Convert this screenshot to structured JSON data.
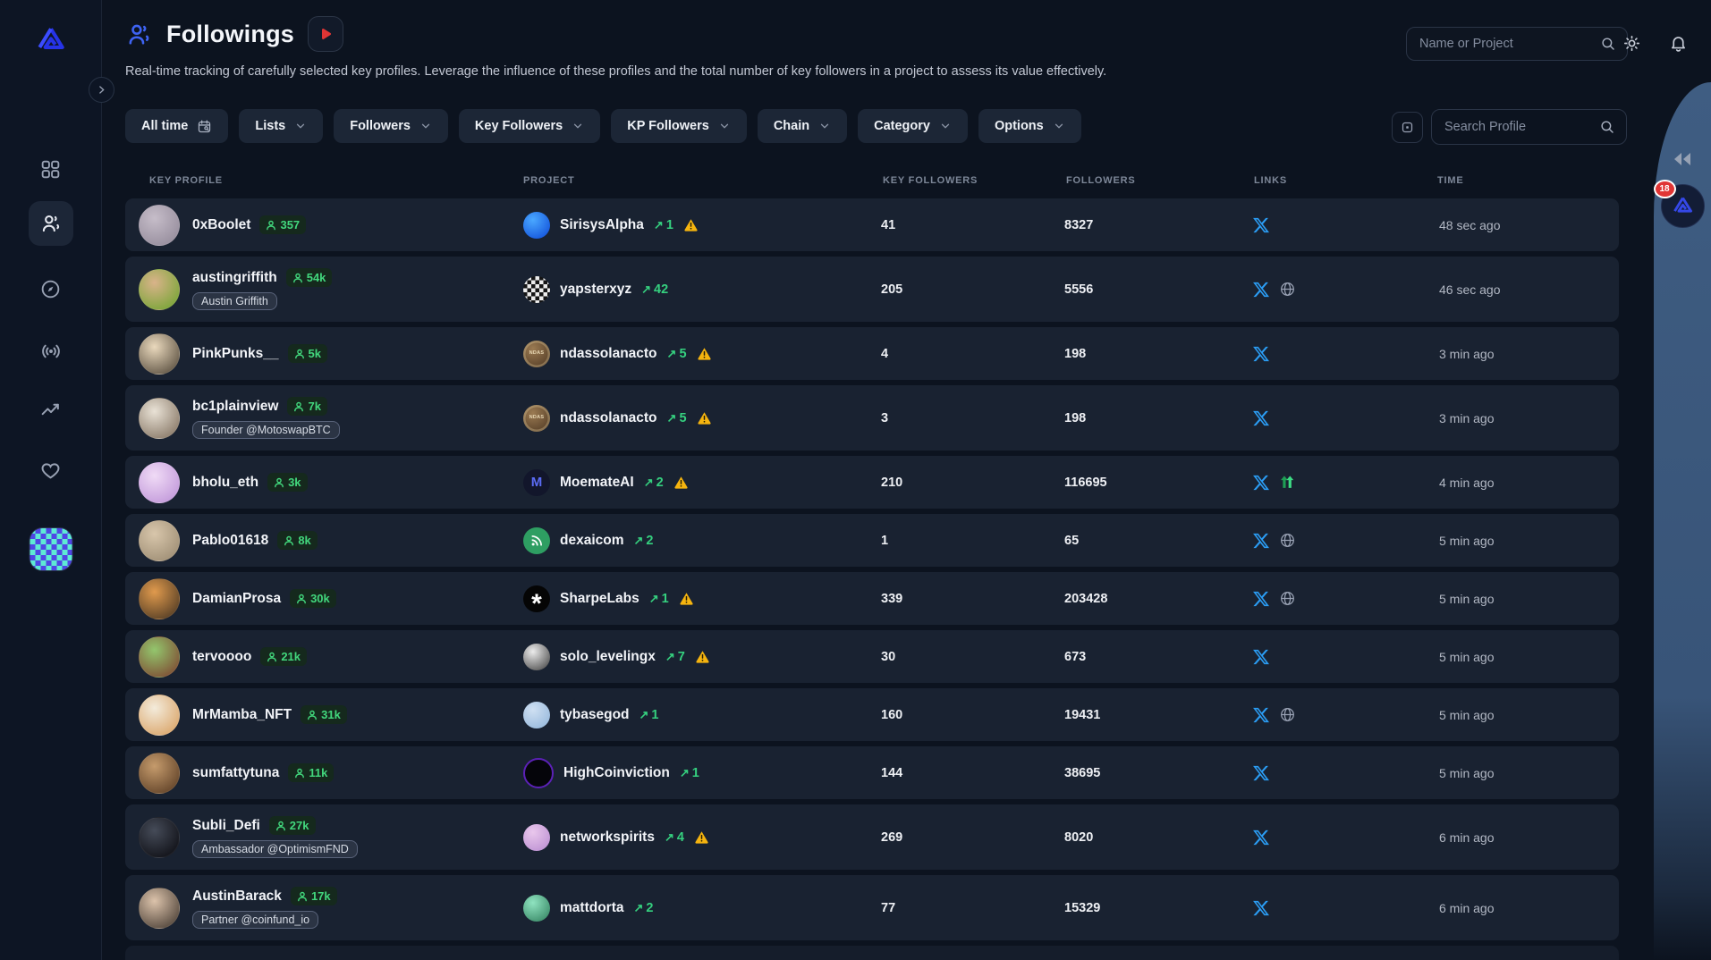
{
  "header": {
    "title": "Followings",
    "subtitle": "Real-time tracking of carefully selected key profiles. Leverage the influence of these profiles and the total number of key followers in a project to assess its value effectively.",
    "global_search_placeholder": "Name or Project"
  },
  "filters": {
    "time": "All time",
    "dropdowns": [
      "Lists",
      "Followers",
      "Key Followers",
      "KP Followers",
      "Chain",
      "Category",
      "Options"
    ],
    "profile_search_placeholder": "Search Profile"
  },
  "right_rail": {
    "notification_count": "18"
  },
  "colors": {
    "accent_green": "#35d07f",
    "x_blue": "#2b9df4",
    "warning_yellow": "#f5b40f",
    "rail_blue": "#3f5d82",
    "badge_red": "#e03535"
  },
  "table": {
    "columns": [
      "KEY PROFILE",
      "PROJECT",
      "KEY FOLLOWERS",
      "FOLLOWERS",
      "LINKS",
      "TIME"
    ],
    "rows": [
      {
        "name": "0xBoolet",
        "badge": "357",
        "tag": null,
        "avatar": {
          "c1": "#c6bdc9",
          "c2": "#8e8595"
        },
        "project": "SirisysAlpha",
        "logo": {
          "kind": "gradient",
          "c1": "#4aa8ff",
          "c2": "#0b47d6",
          "glyph": "",
          "glyphColor": ""
        },
        "delta": "1",
        "warning": true,
        "key_followers": "41",
        "followers": "8327",
        "links": [
          "x"
        ],
        "time": "48 sec ago"
      },
      {
        "name": "austingriffith",
        "badge": "54k",
        "tag": "Austin Griffith",
        "avatar": {
          "c1": "#d9b38a",
          "c2": "#6aa32a"
        },
        "project": "yapsterxyz",
        "logo": {
          "kind": "checker",
          "c1": "#ececec",
          "c2": "#141414",
          "glyph": "",
          "glyphColor": ""
        },
        "delta": "42",
        "warning": false,
        "key_followers": "205",
        "followers": "5556",
        "links": [
          "x",
          "globe"
        ],
        "time": "46 sec ago"
      },
      {
        "name": "PinkPunks__",
        "badge": "5k",
        "tag": null,
        "avatar": {
          "c1": "#ead9bd",
          "c2": "#4a4032"
        },
        "project": "ndassolanacto",
        "logo": {
          "kind": "coin",
          "c1": "#9a7a52",
          "c2": "#4a3420",
          "glyph": "NDAS",
          "glyphColor": "#ead9b5"
        },
        "delta": "5",
        "warning": true,
        "key_followers": "4",
        "followers": "198",
        "links": [
          "x"
        ],
        "time": "3 min ago"
      },
      {
        "name": "bc1plainview",
        "badge": "7k",
        "tag": "Founder @MotoswapBTC",
        "avatar": {
          "c1": "#e9e2d6",
          "c2": "#7b6a58"
        },
        "project": "ndassolanacto",
        "logo": {
          "kind": "coin",
          "c1": "#9a7a52",
          "c2": "#4a3420",
          "glyph": "NDAS",
          "glyphColor": "#ead9b5"
        },
        "delta": "5",
        "warning": true,
        "key_followers": "3",
        "followers": "198",
        "links": [
          "x"
        ],
        "time": "3 min ago"
      },
      {
        "name": "bholu_eth",
        "badge": "3k",
        "tag": null,
        "avatar": {
          "c1": "#f0dbf6",
          "c2": "#bb8fd6"
        },
        "project": "MoemateAI",
        "logo": {
          "kind": "text",
          "c1": "#12162b",
          "c2": "#12162b",
          "glyph": "M",
          "glyphColor": "#5b6cf5"
        },
        "delta": "2",
        "warning": true,
        "key_followers": "210",
        "followers": "116695",
        "links": [
          "x",
          "linktree"
        ],
        "time": "4 min ago"
      },
      {
        "name": "Pablo01618",
        "badge": "8k",
        "tag": null,
        "avatar": {
          "c1": "#d8c6ab",
          "c2": "#96866d"
        },
        "project": "dexaicom",
        "logo": {
          "kind": "rss",
          "c1": "#2e9e62",
          "c2": "#2e9e62",
          "glyph": "",
          "glyphColor": "#ffffff"
        },
        "delta": "2",
        "warning": false,
        "key_followers": "1",
        "followers": "65",
        "links": [
          "x",
          "globe"
        ],
        "time": "5 min ago"
      },
      {
        "name": "DamianProsa",
        "badge": "30k",
        "tag": null,
        "avatar": {
          "c1": "#e09a4d",
          "c2": "#40301f"
        },
        "project": "SharpeLabs",
        "logo": {
          "kind": "text",
          "c1": "#050505",
          "c2": "#050505",
          "glyph": "*",
          "glyphColor": "#ffffff"
        },
        "delta": "1",
        "warning": true,
        "key_followers": "339",
        "followers": "203428",
        "links": [
          "x",
          "globe"
        ],
        "time": "5 min ago"
      },
      {
        "name": "tervoooo",
        "badge": "21k",
        "tag": null,
        "avatar": {
          "c1": "#93c66d",
          "c2": "#7c3b2b"
        },
        "project": "solo_levelingx",
        "logo": {
          "kind": "gradient",
          "c1": "#ececec",
          "c2": "#3a3a3a",
          "glyph": "",
          "glyphColor": ""
        },
        "delta": "7",
        "warning": true,
        "key_followers": "30",
        "followers": "673",
        "links": [
          "x"
        ],
        "time": "5 min ago"
      },
      {
        "name": "MrMamba_NFT",
        "badge": "31k",
        "tag": null,
        "avatar": {
          "c1": "#f3ebdb",
          "c2": "#d79c5b"
        },
        "project": "tybasegod",
        "logo": {
          "kind": "gradient",
          "c1": "#cfe0f2",
          "c2": "#8fb3d9",
          "glyph": "",
          "glyphColor": ""
        },
        "delta": "1",
        "warning": false,
        "key_followers": "160",
        "followers": "19431",
        "links": [
          "x",
          "globe"
        ],
        "time": "5 min ago"
      },
      {
        "name": "sumfattytuna",
        "badge": "11k",
        "tag": null,
        "avatar": {
          "c1": "#c59b6c",
          "c2": "#53361f"
        },
        "project": "HighCoinviction",
        "logo": {
          "kind": "ring",
          "c1": "#05050a",
          "c2": "#5b21b6",
          "glyph": "",
          "glyphColor": ""
        },
        "delta": "1",
        "warning": false,
        "key_followers": "144",
        "followers": "38695",
        "links": [
          "x"
        ],
        "time": "5 min ago"
      },
      {
        "name": "Subli_Defi",
        "badge": "27k",
        "tag": "Ambassador @OptimismFND",
        "avatar": {
          "c1": "#454b58",
          "c2": "#07070c"
        },
        "project": "networkspirits",
        "logo": {
          "kind": "gradient",
          "c1": "#e9c7ec",
          "c2": "#b78ad0",
          "glyph": "",
          "glyphColor": ""
        },
        "delta": "4",
        "warning": true,
        "key_followers": "269",
        "followers": "8020",
        "links": [
          "x"
        ],
        "time": "6 min ago"
      },
      {
        "name": "AustinBarack",
        "badge": "17k",
        "tag": "Partner @coinfund_io",
        "avatar": {
          "c1": "#dcc3ab",
          "c2": "#3c322a"
        },
        "project": "mattdorta",
        "logo": {
          "kind": "gradient",
          "c1": "#8fe3c0",
          "c2": "#2e7d5b",
          "glyph": "",
          "glyphColor": ""
        },
        "delta": "2",
        "warning": false,
        "key_followers": "77",
        "followers": "15329",
        "links": [
          "x"
        ],
        "time": "6 min ago"
      }
    ]
  }
}
